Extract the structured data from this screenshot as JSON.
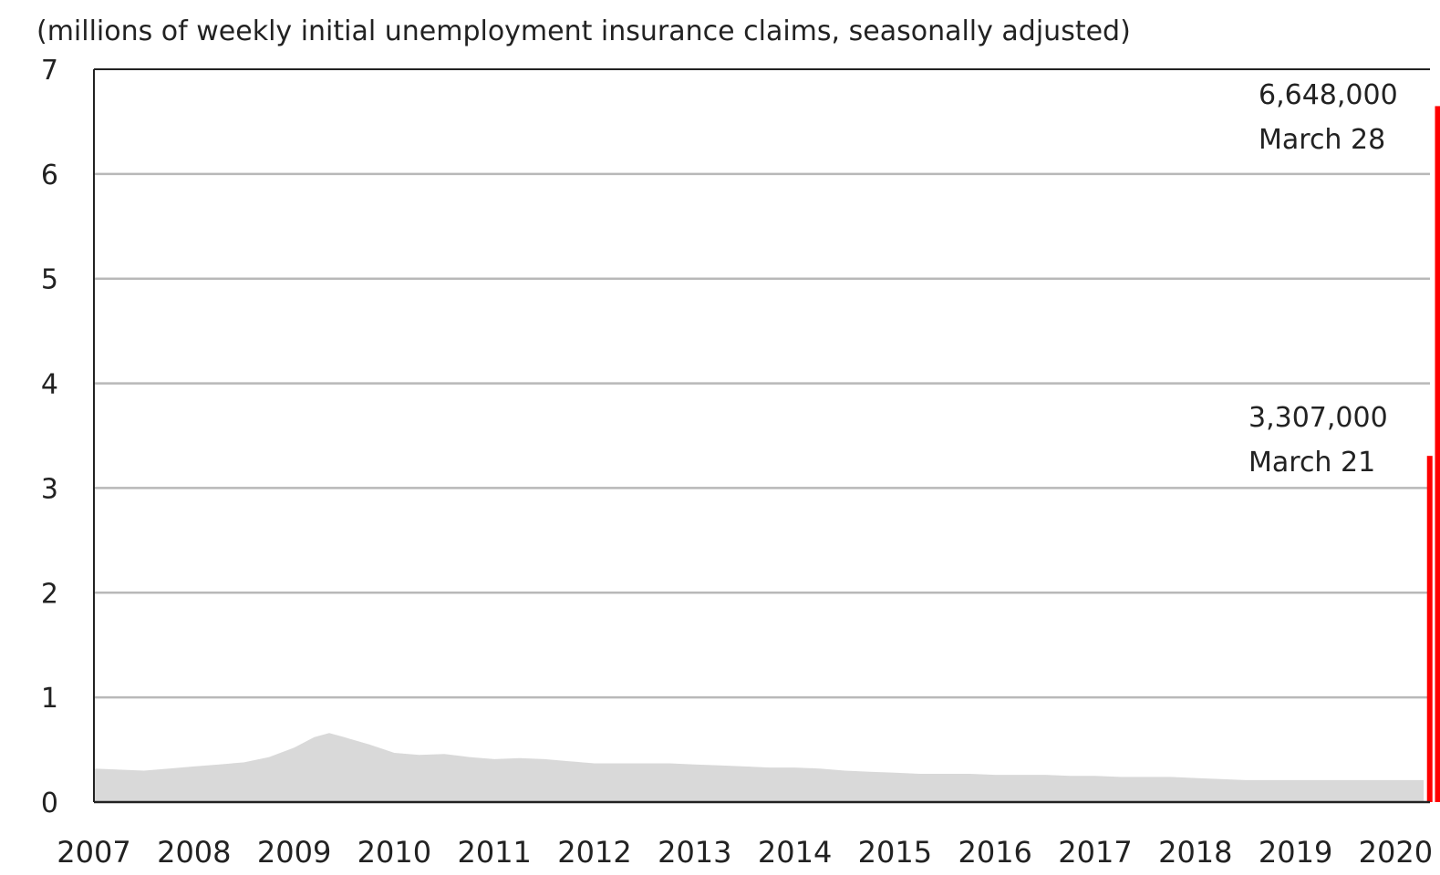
{
  "chart_data": {
    "type": "bar",
    "subtitle": "(millions of weekly initial unemployment insurance claims, seasonally adjusted)",
    "title": "",
    "xlabel": "",
    "ylabel": "",
    "ylim": [
      0,
      7
    ],
    "xlim": [
      2007.0,
      2020.75
    ],
    "y_ticks": [
      "0",
      "1",
      "2",
      "3",
      "4",
      "5",
      "6",
      "7"
    ],
    "x_ticks": [
      "2007",
      "2008",
      "2009",
      "2010",
      "2011",
      "2012",
      "2013",
      "2014",
      "2015",
      "2016",
      "2017",
      "2018",
      "2019",
      "2020"
    ],
    "grid": true,
    "legend": "none",
    "series": [
      {
        "style": "area",
        "color": "#d9d9d9",
        "points": [
          [
            2007.0,
            0.32
          ],
          [
            2007.25,
            0.31
          ],
          [
            2007.5,
            0.3
          ],
          [
            2007.75,
            0.32
          ],
          [
            2008.0,
            0.34
          ],
          [
            2008.25,
            0.36
          ],
          [
            2008.5,
            0.38
          ],
          [
            2008.75,
            0.43
          ],
          [
            2009.0,
            0.52
          ],
          [
            2009.2,
            0.62
          ],
          [
            2009.35,
            0.66
          ],
          [
            2009.5,
            0.62
          ],
          [
            2009.75,
            0.55
          ],
          [
            2010.0,
            0.47
          ],
          [
            2010.25,
            0.45
          ],
          [
            2010.5,
            0.46
          ],
          [
            2010.75,
            0.43
          ],
          [
            2011.0,
            0.41
          ],
          [
            2011.25,
            0.42
          ],
          [
            2011.5,
            0.41
          ],
          [
            2011.75,
            0.39
          ],
          [
            2012.0,
            0.37
          ],
          [
            2012.25,
            0.37
          ],
          [
            2012.5,
            0.37
          ],
          [
            2012.75,
            0.37
          ],
          [
            2013.0,
            0.36
          ],
          [
            2013.25,
            0.35
          ],
          [
            2013.5,
            0.34
          ],
          [
            2013.75,
            0.33
          ],
          [
            2014.0,
            0.33
          ],
          [
            2014.25,
            0.32
          ],
          [
            2014.5,
            0.3
          ],
          [
            2014.75,
            0.29
          ],
          [
            2015.0,
            0.28
          ],
          [
            2015.25,
            0.27
          ],
          [
            2015.5,
            0.27
          ],
          [
            2015.75,
            0.27
          ],
          [
            2016.0,
            0.26
          ],
          [
            2016.25,
            0.26
          ],
          [
            2016.5,
            0.26
          ],
          [
            2016.75,
            0.25
          ],
          [
            2017.0,
            0.25
          ],
          [
            2017.25,
            0.24
          ],
          [
            2017.5,
            0.24
          ],
          [
            2017.75,
            0.24
          ],
          [
            2018.0,
            0.23
          ],
          [
            2018.25,
            0.22
          ],
          [
            2018.5,
            0.21
          ],
          [
            2018.75,
            0.21
          ],
          [
            2019.0,
            0.21
          ],
          [
            2019.25,
            0.21
          ],
          [
            2019.5,
            0.21
          ],
          [
            2019.75,
            0.21
          ],
          [
            2020.0,
            0.21
          ],
          [
            2020.15,
            0.21
          ],
          [
            2020.28,
            0.21
          ]
        ]
      },
      {
        "style": "bar",
        "color": "#ff0000",
        "points": [
          {
            "x": 2020.34,
            "value": 3.307,
            "label": "3,307,000",
            "date": "March 21"
          },
          {
            "x": 2020.42,
            "value": 6.648,
            "label": "6,648,000",
            "date": "March 28"
          }
        ]
      }
    ],
    "annotations": [
      {
        "value": "6,648,000",
        "date": "March 28"
      },
      {
        "value": "3,307,000",
        "date": "March 21"
      }
    ]
  }
}
